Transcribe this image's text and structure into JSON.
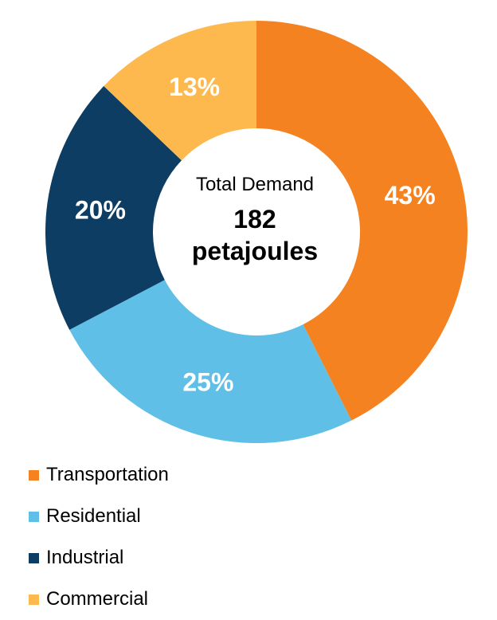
{
  "chart_data": {
    "type": "pie",
    "donut": true,
    "categories": [
      "Transportation",
      "Residential",
      "Industrial",
      "Commercial"
    ],
    "values": [
      43,
      25,
      20,
      13
    ],
    "labels": [
      "43%",
      "25%",
      "20%",
      "13%"
    ],
    "colors": [
      "#F58220",
      "#5FBFE6",
      "#0D3D63",
      "#FDB94E"
    ],
    "center": {
      "caption": "Total Demand",
      "value": "182",
      "unit": "petajoules"
    },
    "legend_position": "bottom-left",
    "start": "top, clockwise"
  }
}
